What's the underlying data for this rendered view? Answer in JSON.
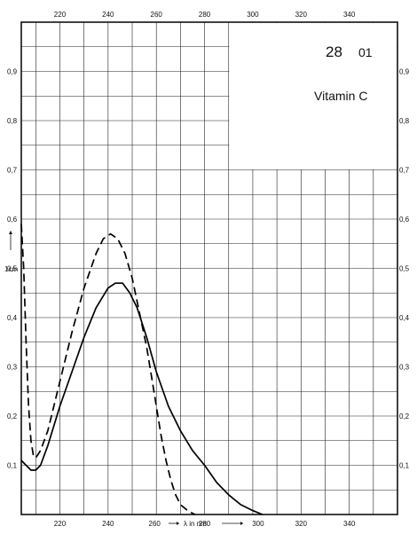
{
  "chart_data": {
    "type": "line",
    "title": "Vitamin C",
    "code": "28",
    "code_sub": "01",
    "xlabel": "λ in nm",
    "ylabel": "1cm",
    "xlim": [
      204,
      360
    ],
    "ylim": [
      0,
      1.0
    ],
    "x_tick_labels": [
      "220",
      "240",
      "260",
      "280",
      "300",
      "320",
      "340"
    ],
    "x_tick_values": [
      220,
      240,
      260,
      280,
      300,
      320,
      340
    ],
    "y_tick_labels": [
      "0,1",
      "0,2",
      "0,3",
      "0,4",
      "0,5",
      "0,6",
      "0,7",
      "0,8",
      "0,9"
    ],
    "y_tick_values": [
      0.1,
      0.2,
      0.3,
      0.4,
      0.5,
      0.6,
      0.7,
      0.8,
      0.9
    ],
    "grid": true,
    "series": [
      {
        "style": "solid",
        "points": [
          [
            204,
            0.11
          ],
          [
            206,
            0.1
          ],
          [
            208,
            0.09
          ],
          [
            210,
            0.09
          ],
          [
            212,
            0.1
          ],
          [
            215,
            0.14
          ],
          [
            220,
            0.22
          ],
          [
            225,
            0.29
          ],
          [
            230,
            0.36
          ],
          [
            235,
            0.42
          ],
          [
            240,
            0.46
          ],
          [
            243,
            0.47
          ],
          [
            246,
            0.47
          ],
          [
            249,
            0.45
          ],
          [
            252,
            0.42
          ],
          [
            256,
            0.36
          ],
          [
            260,
            0.29
          ],
          [
            265,
            0.22
          ],
          [
            270,
            0.17
          ],
          [
            275,
            0.13
          ],
          [
            280,
            0.1
          ],
          [
            285,
            0.065
          ],
          [
            290,
            0.04
          ],
          [
            295,
            0.02
          ],
          [
            300,
            0.008
          ],
          [
            304,
            0.0
          ]
        ]
      },
      {
        "style": "dashed",
        "points": [
          [
            204,
            0.59
          ],
          [
            205,
            0.5
          ],
          [
            206,
            0.35
          ],
          [
            207,
            0.22
          ],
          [
            208,
            0.15
          ],
          [
            209,
            0.12
          ],
          [
            210,
            0.115
          ],
          [
            212,
            0.13
          ],
          [
            215,
            0.17
          ],
          [
            220,
            0.27
          ],
          [
            225,
            0.37
          ],
          [
            230,
            0.46
          ],
          [
            235,
            0.53
          ],
          [
            238,
            0.56
          ],
          [
            241,
            0.57
          ],
          [
            244,
            0.56
          ],
          [
            247,
            0.53
          ],
          [
            250,
            0.48
          ],
          [
            253,
            0.41
          ],
          [
            256,
            0.34
          ],
          [
            258,
            0.28
          ],
          [
            260,
            0.22
          ],
          [
            262,
            0.16
          ],
          [
            264,
            0.11
          ],
          [
            266,
            0.07
          ],
          [
            268,
            0.04
          ],
          [
            270,
            0.02
          ],
          [
            273,
            0.008
          ],
          [
            276,
            0.0
          ]
        ]
      }
    ]
  }
}
